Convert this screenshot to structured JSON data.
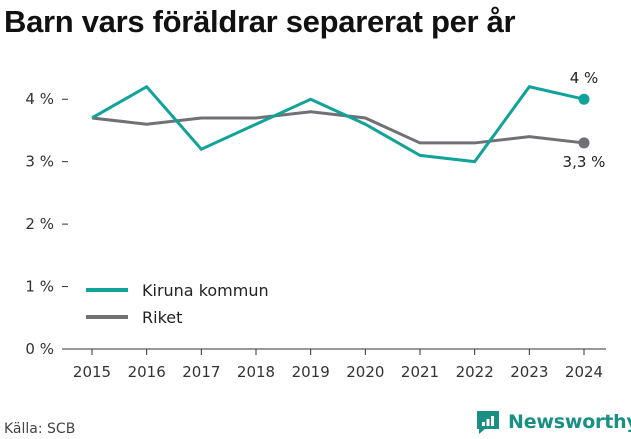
{
  "header": {
    "title": "Barn vars föräldrar separerat per år"
  },
  "footer": {
    "source": "Källa: SCB",
    "brand": "Newsworthy"
  },
  "colors": {
    "kiruna": "#10a39a",
    "riket": "#707075",
    "axis": "#333333",
    "grid": "#bbbbbb",
    "brand": "#1a8f83"
  },
  "chart_data": {
    "type": "line",
    "title": "Barn vars föräldrar separerat per år",
    "xlabel": "",
    "ylabel": "",
    "x": [
      "2015",
      "2016",
      "2017",
      "2018",
      "2019",
      "2020",
      "2021",
      "2022",
      "2023",
      "2024"
    ],
    "ylim": [
      0,
      4.5
    ],
    "yticks": [
      0,
      1,
      2,
      3,
      4
    ],
    "ytick_labels": [
      "0 %",
      "1 %",
      "2 %",
      "3 %",
      "4 %"
    ],
    "grid": false,
    "legend": "lower-left",
    "series": [
      {
        "name": "Kiruna kommun",
        "key": "kiruna",
        "values": [
          3.7,
          4.2,
          3.2,
          3.6,
          4.0,
          3.6,
          3.1,
          3.0,
          4.2,
          4.0
        ],
        "end_label": "4 %"
      },
      {
        "name": "Riket",
        "key": "riket",
        "values": [
          3.7,
          3.6,
          3.7,
          3.7,
          3.8,
          3.7,
          3.3,
          3.3,
          3.4,
          3.3
        ],
        "end_label": "3,3 %"
      }
    ]
  }
}
